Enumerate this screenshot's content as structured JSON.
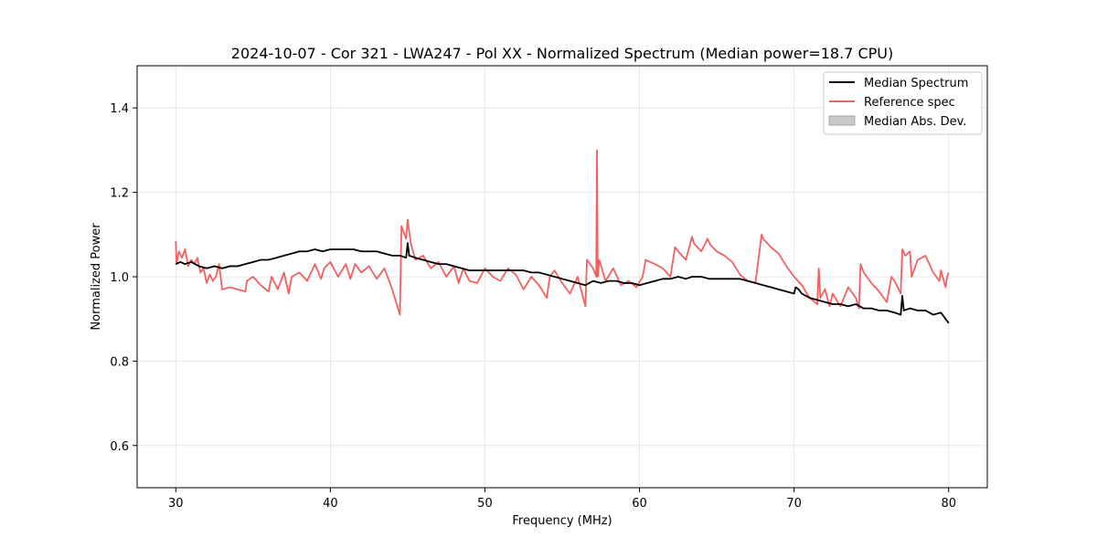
{
  "chart_data": {
    "type": "line",
    "title": "2024-10-07 - Cor 321 - LWA247 - Pol XX - Normalized Spectrum (Median power=18.7 CPU)",
    "xlabel": "Frequency (MHz)",
    "ylabel": "Normalized Power",
    "xlim": [
      27.5,
      82.5
    ],
    "ylim": [
      0.5,
      1.5
    ],
    "xticks": [
      30,
      40,
      50,
      60,
      70,
      80
    ],
    "yticks": [
      0.6,
      0.8,
      1.0,
      1.2,
      1.4
    ],
    "xtick_labels": [
      "30",
      "40",
      "50",
      "60",
      "70",
      "80"
    ],
    "ytick_labels": [
      "0.6",
      "0.8",
      "1.0",
      "1.2",
      "1.4"
    ],
    "grid": true,
    "legend_position": "top-right",
    "legend": [
      "Median Spectrum",
      "Reference spec",
      "Median Abs. Dev."
    ],
    "colors": {
      "median": "#000000",
      "reference": "#f16161",
      "mad": "#c8c8c8"
    },
    "series": [
      {
        "name": "Median Spectrum",
        "x": [
          30,
          30.3,
          30.6,
          31,
          31.5,
          32,
          32.5,
          33,
          33.5,
          34,
          34.5,
          35,
          35.5,
          36,
          36.5,
          37,
          37.5,
          38,
          38.5,
          39,
          39.5,
          40,
          40.5,
          41,
          41.5,
          42,
          42.5,
          43,
          43.5,
          44,
          44.5,
          44.9,
          45.0,
          45.1,
          45.5,
          46,
          46.5,
          47,
          47.5,
          48,
          48.5,
          49,
          49.5,
          50,
          50.5,
          51,
          51.5,
          52,
          52.5,
          53,
          53.5,
          54,
          54.5,
          55,
          55.5,
          56,
          56.5,
          57,
          57.5,
          58,
          58.5,
          59,
          59.5,
          60,
          60.5,
          61,
          61.5,
          62,
          62.5,
          63,
          63.4,
          63.8,
          64,
          64.5,
          65,
          65.5,
          66,
          66.5,
          67,
          67.5,
          68,
          68.5,
          69,
          69.5,
          70,
          70.1,
          70.3,
          70.5,
          71,
          71.5,
          72,
          72.5,
          73,
          73.5,
          74,
          74.5,
          75,
          75.5,
          76,
          76.5,
          76.9,
          77.0,
          77.1,
          77.5,
          78,
          78.5,
          79,
          79.5,
          80
        ],
        "values": [
          1.03,
          1.035,
          1.03,
          1.035,
          1.025,
          1.02,
          1.025,
          1.02,
          1.025,
          1.025,
          1.03,
          1.035,
          1.04,
          1.04,
          1.045,
          1.05,
          1.055,
          1.06,
          1.06,
          1.065,
          1.06,
          1.065,
          1.065,
          1.065,
          1.065,
          1.06,
          1.06,
          1.06,
          1.055,
          1.05,
          1.05,
          1.045,
          1.08,
          1.05,
          1.045,
          1.04,
          1.035,
          1.03,
          1.03,
          1.025,
          1.02,
          1.015,
          1.015,
          1.015,
          1.015,
          1.015,
          1.015,
          1.015,
          1.015,
          1.01,
          1.01,
          1.005,
          1.0,
          0.995,
          0.99,
          0.985,
          0.98,
          0.99,
          0.985,
          0.99,
          0.99,
          0.985,
          0.985,
          0.98,
          0.985,
          0.99,
          0.995,
          0.995,
          1.0,
          0.995,
          1.0,
          1.0,
          1.0,
          0.995,
          0.995,
          0.995,
          0.995,
          0.995,
          0.99,
          0.985,
          0.98,
          0.975,
          0.97,
          0.965,
          0.96,
          0.975,
          0.97,
          0.96,
          0.95,
          0.945,
          0.94,
          0.935,
          0.935,
          0.93,
          0.935,
          0.925,
          0.925,
          0.92,
          0.92,
          0.915,
          0.91,
          0.955,
          0.92,
          0.925,
          0.92,
          0.92,
          0.91,
          0.915,
          0.89
        ]
      },
      {
        "name": "Reference spec",
        "x": [
          30,
          30.05,
          30.2,
          30.4,
          30.6,
          30.8,
          31.0,
          31.2,
          31.4,
          31.6,
          31.8,
          32.0,
          32.2,
          32.4,
          32.6,
          32.8,
          33.0,
          33.5,
          34.0,
          34.5,
          34.6,
          35.0,
          35.5,
          36.0,
          36.2,
          36.6,
          37.0,
          37.3,
          37.5,
          38.0,
          38.5,
          39.0,
          39.4,
          39.6,
          40.0,
          40.5,
          41.0,
          41.3,
          41.6,
          42.0,
          42.5,
          43.0,
          43.5,
          44.0,
          44.5,
          44.6,
          44.7,
          44.9,
          45.0,
          45.2,
          45.5,
          46.0,
          46.5,
          47.0,
          47.5,
          48.0,
          48.3,
          48.6,
          49.0,
          49.5,
          50.0,
          50.5,
          51.0,
          51.5,
          52.0,
          52.5,
          53.0,
          53.5,
          54.0,
          54.2,
          54.5,
          55.0,
          55.5,
          56.0,
          56.5,
          56.6,
          57.0,
          57.2,
          57.25,
          57.3,
          57.4,
          57.8,
          58.3,
          58.8,
          59.3,
          59.8,
          60.2,
          60.4,
          61.0,
          61.5,
          62.0,
          62.3,
          62.5,
          63.0,
          63.4,
          63.5,
          64.0,
          64.4,
          64.6,
          65.0,
          65.5,
          66.0,
          66.5,
          67.0,
          67.5,
          67.9,
          68.0,
          68.5,
          69.0,
          69.5,
          70.0,
          70.5,
          71.0,
          71.5,
          71.6,
          71.7,
          72.0,
          72.3,
          72.5,
          73.0,
          73.5,
          74.0,
          74.2,
          74.3,
          74.5,
          75.0,
          75.5,
          76.0,
          76.3,
          76.5,
          76.9,
          77.0,
          77.2,
          77.5,
          77.6,
          78.0,
          78.5,
          79.0,
          79.4,
          79.5,
          79.8,
          79.9,
          80.0
        ],
        "values": [
          1.085,
          1.03,
          1.06,
          1.045,
          1.065,
          1.025,
          1.04,
          1.03,
          1.045,
          1.01,
          1.02,
          0.985,
          1.005,
          0.99,
          1.0,
          1.03,
          0.97,
          0.975,
          0.97,
          0.965,
          0.99,
          1.0,
          0.98,
          0.965,
          1.0,
          0.97,
          1.01,
          0.96,
          1.0,
          1.01,
          0.99,
          1.03,
          0.995,
          1.02,
          1.035,
          1.0,
          1.03,
          0.995,
          1.03,
          1.01,
          1.025,
          0.995,
          1.02,
          0.97,
          0.91,
          1.12,
          1.11,
          1.09,
          1.135,
          1.08,
          1.04,
          1.05,
          1.02,
          1.035,
          1.0,
          1.025,
          0.985,
          1.02,
          0.99,
          0.985,
          1.02,
          1.0,
          0.99,
          1.02,
          1.005,
          0.97,
          1.0,
          0.98,
          0.95,
          1.0,
          1.015,
          0.985,
          0.96,
          1.0,
          0.93,
          1.04,
          1.02,
          1.0,
          1.3,
          1.0,
          1.04,
          0.99,
          1.02,
          0.98,
          0.99,
          0.975,
          1.0,
          1.04,
          1.03,
          1.02,
          1.0,
          1.07,
          1.06,
          1.04,
          1.095,
          1.08,
          1.06,
          1.09,
          1.075,
          1.06,
          1.05,
          1.035,
          1.005,
          0.99,
          0.985,
          1.1,
          1.09,
          1.07,
          1.055,
          1.025,
          1.0,
          0.98,
          0.95,
          0.935,
          1.02,
          0.95,
          0.97,
          0.93,
          0.96,
          0.93,
          0.975,
          0.95,
          0.925,
          1.03,
          1.01,
          0.985,
          0.965,
          0.94,
          1.0,
          0.99,
          0.96,
          1.065,
          1.05,
          1.06,
          1.0,
          1.04,
          1.05,
          1.01,
          0.99,
          1.015,
          0.975,
          1.0,
          1.01
        ]
      },
      {
        "name": "Median Abs. Dev.",
        "x": [],
        "values": []
      }
    ]
  }
}
